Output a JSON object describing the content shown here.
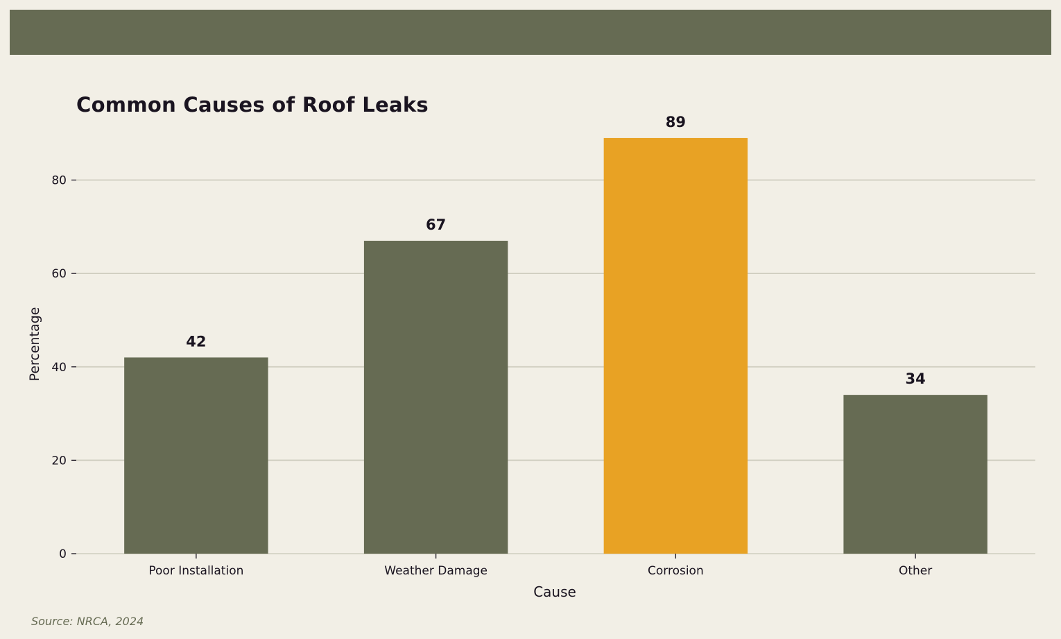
{
  "chart_data": {
    "type": "bar",
    "title": "Common Causes of Roof Leaks",
    "xlabel": "Cause",
    "ylabel": "Percentage",
    "categories": [
      "Poor Installation",
      "Weather Damage",
      "Corrosion",
      "Other"
    ],
    "values": [
      42,
      67,
      89,
      34
    ],
    "data_labels": [
      "42",
      "67",
      "89",
      "34"
    ],
    "ylim": [
      0,
      93
    ],
    "yticks": [
      0,
      20,
      40,
      60,
      80
    ],
    "ytick_labels": [
      "0",
      "20",
      "40",
      "60",
      "80"
    ],
    "grid": true,
    "legend": "none",
    "colors": {
      "bar": "#666b53",
      "highlight": "#e8a224",
      "highlight_category": "Corrosion",
      "background": "#f2efe6",
      "grid": "#cfcdbf",
      "text": "#1a1420",
      "band": "#666b53"
    }
  },
  "footer": {
    "source": "Source: NRCA, 2024"
  }
}
